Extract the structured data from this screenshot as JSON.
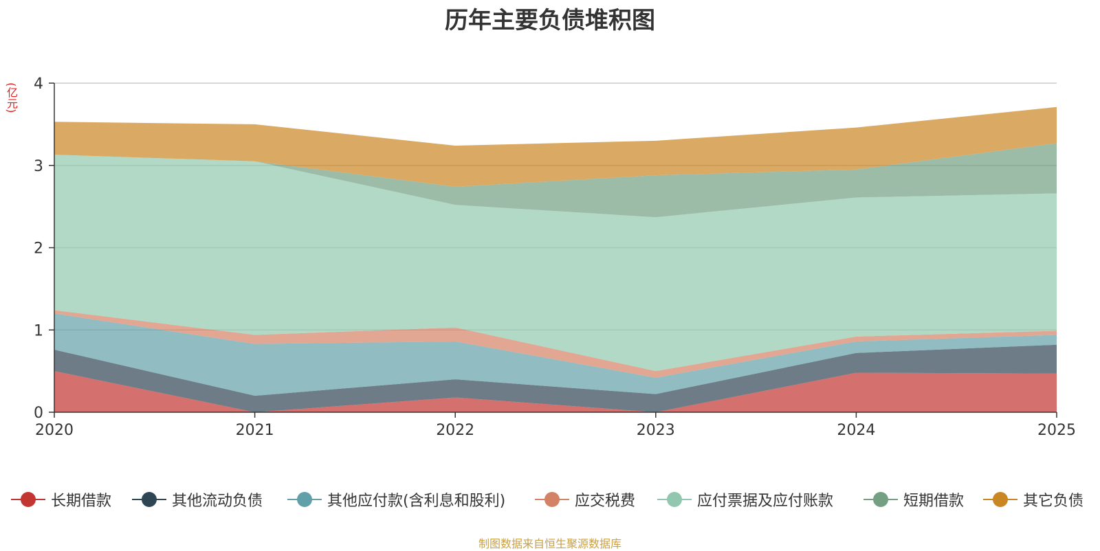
{
  "chart_data": {
    "type": "area",
    "stacked": true,
    "title": "历年主要负债堆积图",
    "ylabel": "(亿元)",
    "x": [
      "2020",
      "2021",
      "2022",
      "2023",
      "2024",
      "2025"
    ],
    "ylim": [
      0,
      4
    ],
    "yticks": [
      "0",
      "1",
      "2",
      "3",
      "4"
    ],
    "series": [
      {
        "name": "长期借款",
        "color": "#c23531",
        "values": [
          0.5,
          0.0,
          0.18,
          0.0,
          0.48,
          0.47
        ]
      },
      {
        "name": "其他流动负债",
        "color": "#2f4554",
        "values": [
          0.26,
          0.2,
          0.22,
          0.22,
          0.24,
          0.35
        ]
      },
      {
        "name": "其他应付款(含利息和股利)",
        "color": "#61a0a8",
        "values": [
          0.44,
          0.63,
          0.46,
          0.2,
          0.14,
          0.12
        ]
      },
      {
        "name": "应交税费",
        "color": "#d48265",
        "values": [
          0.04,
          0.11,
          0.17,
          0.08,
          0.06,
          0.05
        ]
      },
      {
        "name": "应付票据及应付账款",
        "color": "#91c7ae",
        "values": [
          1.89,
          2.11,
          1.49,
          1.87,
          1.69,
          1.67
        ]
      },
      {
        "name": "短期借款",
        "color": "#749f83",
        "values": [
          0.0,
          0.0,
          0.22,
          0.51,
          0.34,
          0.61
        ]
      },
      {
        "name": "其它负债",
        "color": "#ca8622",
        "values": [
          0.4,
          0.45,
          0.5,
          0.42,
          0.51,
          0.44
        ]
      }
    ]
  },
  "source_note": "制图数据来自恒生聚源数据库"
}
